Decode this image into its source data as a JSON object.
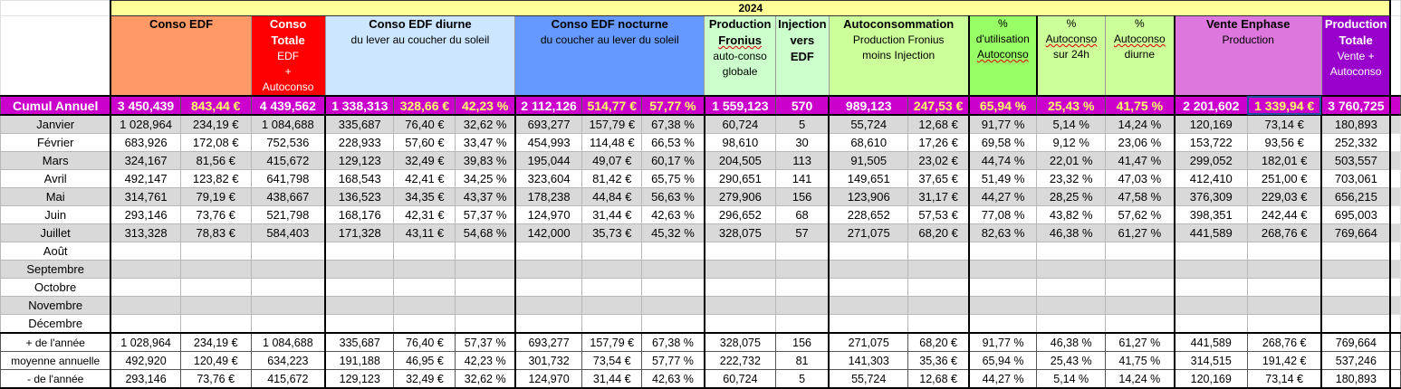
{
  "year_label": "2024",
  "headers": {
    "conso_edf": {
      "title": "Conso EDF"
    },
    "conso_totale": {
      "title": "Conso Totale",
      "line1": "EDF",
      "line2": "+",
      "line3": "Autoconso"
    },
    "diurne": {
      "title": "Conso EDF diurne",
      "sub": "du lever au coucher du soleil"
    },
    "nocturne": {
      "title": "Conso EDF nocturne",
      "sub": "du coucher au lever du soleil"
    },
    "fronius": {
      "title1": "Production",
      "title2": "Fronius",
      "line1": "auto-conso",
      "line2": "globale"
    },
    "injection": {
      "title1": "Injection",
      "title2": "vers EDF"
    },
    "autoconso": {
      "title": "Autoconsommation",
      "line1": "Production Fronius",
      "line2": "moins Injection"
    },
    "pct_util": {
      "l1": "%",
      "l2": "d'utilisation",
      "l3": "Autoconso"
    },
    "pct_24h": {
      "l1": "%",
      "l2": "Autoconso",
      "l3": "sur 24h"
    },
    "pct_diurne": {
      "l1": "%",
      "l2": "Autoconso",
      "l3": "diurne"
    },
    "enphase": {
      "title": "Vente Enphase",
      "sub": "Production"
    },
    "prod_totale": {
      "title1": "Production",
      "title2": "Totale",
      "line1": "Vente +",
      "line2": "Autoconso"
    }
  },
  "cumul": {
    "label": "Cumul Annuel",
    "values": [
      "3 450,439",
      "843,44 €",
      "4 439,562",
      "1 338,313",
      "328,66 €",
      "42,23 %",
      "2 112,126",
      "514,77 €",
      "57,77 %",
      "1 559,123",
      "570",
      "989,123",
      "247,53 €",
      "65,94 %",
      "25,43 %",
      "41,75 %",
      "2 201,602",
      "1 339,94 €",
      "3 760,725"
    ]
  },
  "months": [
    {
      "name": "Janvier",
      "values": [
        "1 028,964",
        "234,19 €",
        "1 084,688",
        "335,687",
        "76,40 €",
        "32,62 %",
        "693,277",
        "157,79 €",
        "67,38 %",
        "60,724",
        "5",
        "55,724",
        "12,68 €",
        "91,77 %",
        "5,14 %",
        "14,24 %",
        "120,169",
        "73,14 €",
        "180,893"
      ]
    },
    {
      "name": "Février",
      "values": [
        "683,926",
        "172,08 €",
        "752,536",
        "228,933",
        "57,60 €",
        "33,47 %",
        "454,993",
        "114,48 €",
        "66,53 %",
        "98,610",
        "30",
        "68,610",
        "17,26 €",
        "69,58 %",
        "9,12 %",
        "23,06 %",
        "153,722",
        "93,56 €",
        "252,332"
      ]
    },
    {
      "name": "Mars",
      "values": [
        "324,167",
        "81,56 €",
        "415,672",
        "129,123",
        "32,49 €",
        "39,83 %",
        "195,044",
        "49,07 €",
        "60,17 %",
        "204,505",
        "113",
        "91,505",
        "23,02 €",
        "44,74 %",
        "22,01 %",
        "41,47 %",
        "299,052",
        "182,01 €",
        "503,557"
      ]
    },
    {
      "name": "Avril",
      "values": [
        "492,147",
        "123,82 €",
        "641,798",
        "168,543",
        "42,41 €",
        "34,25 %",
        "323,604",
        "81,42 €",
        "65,75 %",
        "290,651",
        "141",
        "149,651",
        "37,65 €",
        "51,49 %",
        "23,32 %",
        "47,03 %",
        "412,410",
        "251,00 €",
        "703,061"
      ]
    },
    {
      "name": "Mai",
      "values": [
        "314,761",
        "79,19 €",
        "438,667",
        "136,523",
        "34,35 €",
        "43,37 %",
        "178,238",
        "44,84 €",
        "56,63 %",
        "279,906",
        "156",
        "123,906",
        "31,17 €",
        "44,27 %",
        "28,25 %",
        "47,58 %",
        "376,309",
        "229,03 €",
        "656,215"
      ]
    },
    {
      "name": "Juin",
      "values": [
        "293,146",
        "73,76 €",
        "521,798",
        "168,176",
        "42,31 €",
        "57,37 %",
        "124,970",
        "31,44 €",
        "42,63 %",
        "296,652",
        "68",
        "228,652",
        "57,53 €",
        "77,08 %",
        "43,82 %",
        "57,62 %",
        "398,351",
        "242,44 €",
        "695,003"
      ]
    },
    {
      "name": "Juillet",
      "values": [
        "313,328",
        "78,83 €",
        "584,403",
        "171,328",
        "43,11 €",
        "54,68 %",
        "142,000",
        "35,73 €",
        "45,32 %",
        "328,075",
        "57",
        "271,075",
        "68,20 €",
        "82,63 %",
        "46,38 %",
        "61,27 %",
        "441,589",
        "268,76 €",
        "769,664"
      ]
    },
    {
      "name": "Août",
      "values": []
    },
    {
      "name": "Septembre",
      "values": []
    },
    {
      "name": "Octobre",
      "values": []
    },
    {
      "name": "Novembre",
      "values": []
    },
    {
      "name": "Décembre",
      "values": []
    }
  ],
  "stats": [
    {
      "label": "+ de l'année",
      "values": [
        "1 028,964",
        "234,19 €",
        "1 084,688",
        "335,687",
        "76,40 €",
        "57,37 %",
        "693,277",
        "157,79 €",
        "67,38 %",
        "328,075",
        "156",
        "271,075",
        "68,20 €",
        "91,77 %",
        "46,38 %",
        "61,27 %",
        "441,589",
        "268,76 €",
        "769,664"
      ]
    },
    {
      "label": "moyenne annuelle",
      "values": [
        "492,920",
        "120,49 €",
        "634,223",
        "191,188",
        "46,95 €",
        "42,23 %",
        "301,732",
        "73,54 €",
        "57,77 %",
        "222,732",
        "81",
        "141,303",
        "35,36 €",
        "65,94 %",
        "25,43 %",
        "41,75 %",
        "314,515",
        "191,42 €",
        "537,246"
      ]
    },
    {
      "label": "- de l'année",
      "values": [
        "293,146",
        "73,76 €",
        "415,672",
        "129,123",
        "32,49 €",
        "32,62 %",
        "124,970",
        "31,44 €",
        "42,63 %",
        "60,724",
        "5",
        "55,724",
        "12,68 €",
        "44,27 %",
        "5,14 %",
        "14,24 %",
        "120,169",
        "73,14 €",
        "180,893"
      ]
    }
  ],
  "colors": {
    "year": "#ffff99",
    "cumul": "#cc00cc",
    "conso_edf": "#ff9966",
    "conso_totale": "#ff0000",
    "diurne": "#cce6ff",
    "nocturne": "#6699ff",
    "fronius": "#ccffcc",
    "injection": "#ccffcc",
    "autoconso": "#ccff99",
    "pct_util": "#99ff66",
    "pct_other": "#ccff99",
    "enphase": "#dd77dd",
    "prod_totale": "#9900cc"
  }
}
